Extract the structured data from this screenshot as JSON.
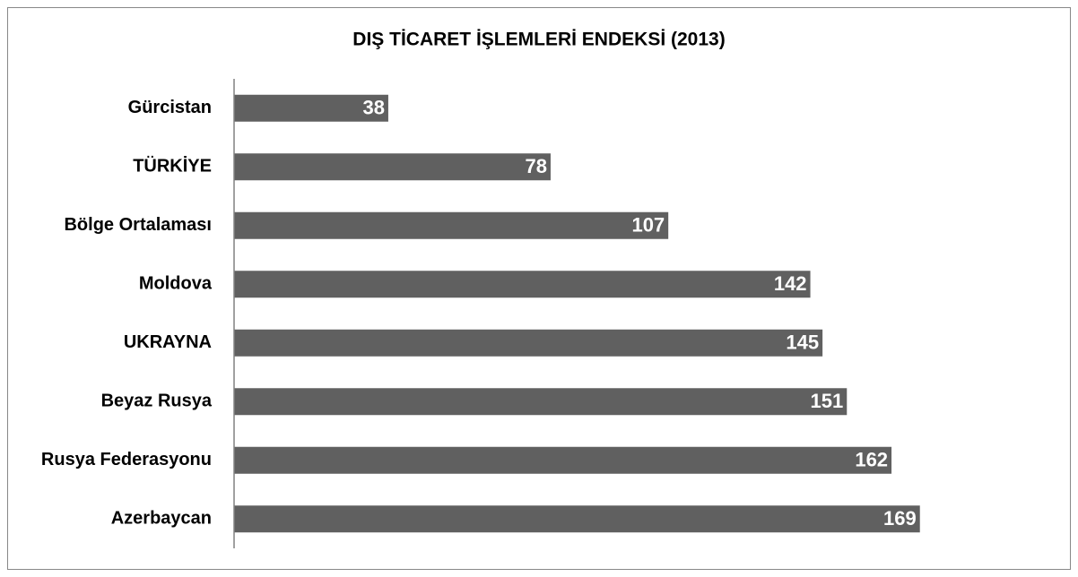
{
  "chart_data": {
    "type": "bar",
    "orientation": "horizontal",
    "title": "DIŞ TİCARET İŞLEMLERİ ENDEKSİ (2013)",
    "categories": [
      "Gürcistan",
      "TÜRKİYE",
      "Bölge Ortalaması",
      "Moldova",
      "UKRAYNA",
      "Beyaz Rusya",
      "Rusya Federasyonu",
      "Azerbaycan"
    ],
    "values": [
      38,
      78,
      107,
      142,
      145,
      151,
      162,
      169
    ],
    "color": "#606060",
    "xlim": [
      0,
      200
    ],
    "grid": false
  }
}
